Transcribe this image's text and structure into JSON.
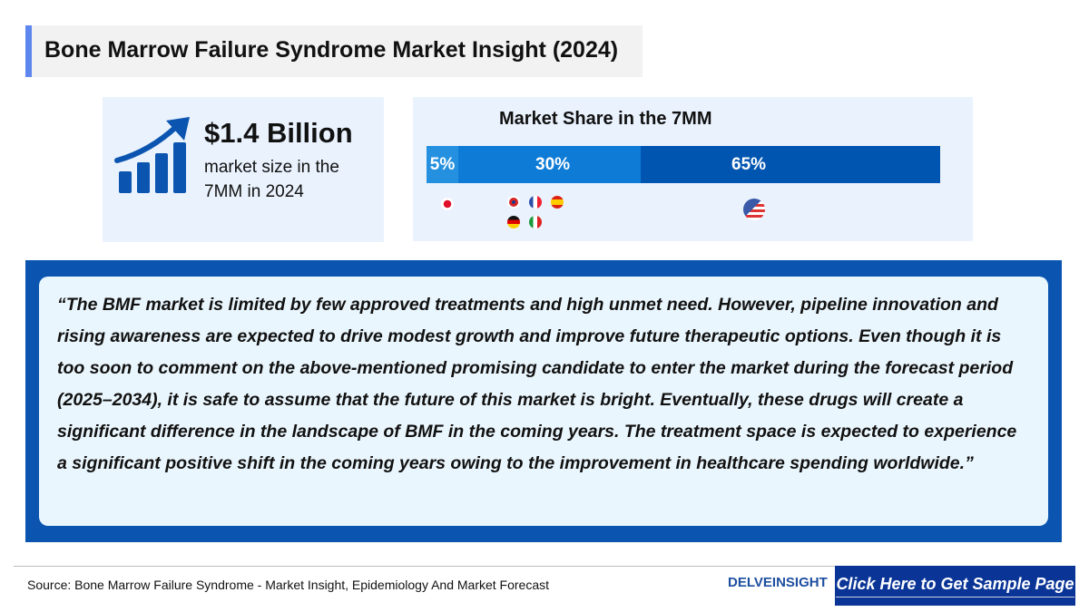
{
  "title": "Bone Marrow Failure Syndrome Market Insight (2024)",
  "market_size": {
    "value": "$1.4 Billion",
    "description": "market size in the 7MM in 2024",
    "icon": "growth-chart-icon"
  },
  "market_share": {
    "title": "Market Share in the 7MM",
    "segments": [
      {
        "label": "5%",
        "value": 5,
        "color": "#2590e0",
        "countries": [
          "Japan"
        ]
      },
      {
        "label": "30%",
        "value": 30,
        "color": "#0e7bd6",
        "countries": [
          "UK",
          "France",
          "Spain",
          "Germany",
          "Italy"
        ]
      },
      {
        "label": "65%",
        "value": 65,
        "color": "#0055b0",
        "countries": [
          "US"
        ]
      }
    ]
  },
  "quote": "“The BMF market is limited by few approved treatments and high unmet need. However, pipeline innovation and rising awareness are expected to drive modest growth and improve future therapeutic options. Even though it is too soon to comment on the above-mentioned promising candidate to enter the market during the forecast period (2025–2034), it is safe to assume that the future of this market is bright. Eventually, these drugs will create a significant difference in the landscape of BMF in the coming years. The treatment space is expected to experience a significant positive shift in the coming years owing to the improvement in healthcare spending worldwide.”",
  "footer": {
    "source": "Source: Bone Marrow Failure Syndrome - Market Insight, Epidemiology And Market Forecast",
    "logo": "DELVEINSIGHT",
    "cta": "Click Here to Get Sample Page"
  }
}
